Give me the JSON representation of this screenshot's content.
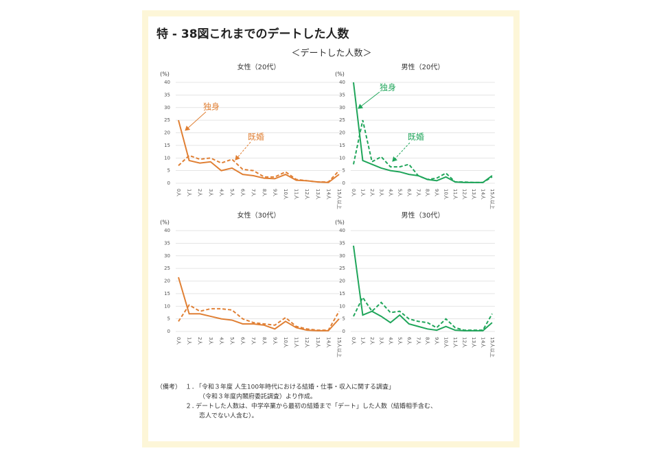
{
  "title": "特 - 38図これまでのデートした人数",
  "subtitle": "＜デートした人数＞",
  "chart_data": [
    {
      "type": "line",
      "title": "女性（20代）",
      "ylabel": "(%)",
      "ylim": [
        0,
        40
      ],
      "yticks": [
        0,
        5,
        10,
        15,
        20,
        25,
        30,
        35,
        40
      ],
      "grid": true,
      "categories": [
        "0人",
        "1人",
        "2人",
        "3人",
        "4人",
        "5人",
        "6人",
        "7人",
        "8人",
        "9人",
        "10人",
        "11人",
        "12人",
        "13人",
        "14人",
        "15人以上"
      ],
      "series": [
        {
          "name": "独身",
          "color": "#e07f33",
          "dashed": false,
          "values": [
            25,
            9,
            8,
            8.5,
            5,
            6,
            3.5,
            3,
            2,
            1.8,
            3.5,
            1.2,
            1,
            0.5,
            0.3,
            3.5
          ]
        },
        {
          "name": "既婚",
          "color": "#e07f33",
          "dashed": true,
          "values": [
            7,
            11,
            9.5,
            10,
            8,
            9.5,
            5.5,
            5,
            2.5,
            2.5,
            4.5,
            1.5,
            1,
            0.5,
            0.5,
            5
          ]
        }
      ]
    },
    {
      "type": "line",
      "title": "男性（20代）",
      "ylabel": "(%)",
      "ylim": [
        0,
        40
      ],
      "yticks": [
        0,
        5,
        10,
        15,
        20,
        25,
        30,
        35,
        40
      ],
      "grid": true,
      "categories": [
        "0人",
        "1人",
        "2人",
        "3人",
        "4人",
        "5人",
        "6人",
        "7人",
        "8人",
        "9人",
        "10人",
        "11人",
        "12人",
        "13人",
        "14人",
        "15人以上"
      ],
      "series": [
        {
          "name": "独身",
          "color": "#1fa55a",
          "dashed": false,
          "values": [
            40,
            9,
            7.5,
            6,
            5,
            4.5,
            3.5,
            3,
            1.5,
            1,
            2.5,
            0.5,
            0.3,
            0.3,
            0.3,
            3
          ]
        },
        {
          "name": "既婚",
          "color": "#1fa55a",
          "dashed": true,
          "values": [
            7.5,
            25,
            8.5,
            10.5,
            6.5,
            6.5,
            7.5,
            3,
            1.5,
            2,
            4,
            0.5,
            0.5,
            0.3,
            0.3,
            2.5
          ]
        }
      ]
    },
    {
      "type": "line",
      "title": "女性（30代）",
      "ylabel": "(%)",
      "ylim": [
        0,
        40
      ],
      "yticks": [
        0,
        5,
        10,
        15,
        20,
        25,
        30,
        35,
        40
      ],
      "grid": true,
      "categories": [
        "0人",
        "1人",
        "2人",
        "3人",
        "4人",
        "5人",
        "6人",
        "7人",
        "8人",
        "9人",
        "10人",
        "11人",
        "12人",
        "13人",
        "14人",
        "15人以上"
      ],
      "series": [
        {
          "color": "#e07f33",
          "dashed": false,
          "values": [
            21.5,
            7,
            7,
            6,
            5,
            4.5,
            3,
            3,
            2.5,
            1,
            4,
            1.5,
            0.5,
            0.3,
            0.3,
            5
          ]
        },
        {
          "color": "#e07f33",
          "dashed": true,
          "values": [
            4,
            10.5,
            8,
            9,
            9,
            8.5,
            5,
            3.5,
            3,
            2.5,
            5.5,
            2,
            1,
            0.5,
            0.5,
            8
          ]
        }
      ]
    },
    {
      "type": "line",
      "title": "男性（30代）",
      "ylabel": "(%)",
      "ylim": [
        0,
        40
      ],
      "yticks": [
        0,
        5,
        10,
        15,
        20,
        25,
        30,
        35,
        40
      ],
      "grid": true,
      "categories": [
        "0人",
        "1人",
        "2人",
        "3人",
        "4人",
        "5人",
        "6人",
        "7人",
        "8人",
        "9人",
        "10人",
        "11人",
        "12人",
        "13人",
        "14人",
        "15人以上"
      ],
      "series": [
        {
          "color": "#1fa55a",
          "dashed": false,
          "values": [
            34,
            6.5,
            8,
            6,
            3.5,
            6.5,
            3,
            2,
            1,
            0.5,
            2,
            0.5,
            0.3,
            0.3,
            0.3,
            3.5
          ]
        },
        {
          "color": "#1fa55a",
          "dashed": true,
          "values": [
            6,
            13.5,
            8,
            11.5,
            7.5,
            8,
            5,
            4,
            3.5,
            1.5,
            5,
            1.5,
            0.5,
            0.5,
            0.5,
            7
          ]
        }
      ]
    }
  ],
  "notes": {
    "label": "（備考）",
    "items": [
      {
        "number": "１．",
        "lines": [
          "「令和３年度 人生100年時代における結婚・仕事・収入に関する調査」",
          "（令和３年度内閣府委託調査）より作成。"
        ]
      },
      {
        "number": "２．",
        "lines": [
          "デートした人数は、中学卒業から最初の結婚まで「デート」した人数（結婚相手含む、",
          "恋人でない人含む）。"
        ]
      }
    ]
  }
}
